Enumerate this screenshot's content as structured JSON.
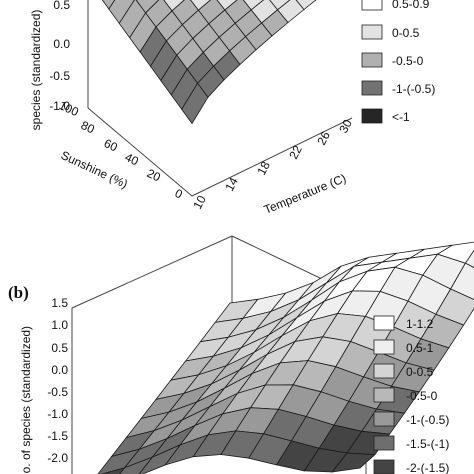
{
  "chart_data": [
    {
      "panel": "",
      "type": "surface3d",
      "ylabel": "species (standardized)",
      "xlabel_sunshine": "Sunshine (%)",
      "xlabel_temperature": "Temperature (C)",
      "z_ticks": [
        "0.5",
        "0.0",
        "-0.5",
        "-1.0"
      ],
      "sunshine_ticks": [
        "100",
        "80",
        "60",
        "40",
        "20",
        "0"
      ],
      "temperature_ticks": [
        "10",
        "14",
        "18",
        "22",
        "26",
        "30"
      ],
      "zlim": [
        -1.3,
        1.0
      ],
      "legend": [
        {
          "label": "0.5-0.9",
          "color": "#ffffff"
        },
        {
          "label": "0-0.5",
          "color": "#e2e2e2"
        },
        {
          "label": "-0.5-0",
          "color": "#b0b0b0"
        },
        {
          "label": "-1-(-0.5)",
          "color": "#727272"
        },
        {
          "label": "<-1",
          "color": "#262626"
        }
      ]
    },
    {
      "panel": "(b)",
      "type": "surface3d",
      "ylabel": "No. of species (standardized)",
      "z_ticks": [
        "1.5",
        "1.0",
        "0.5",
        "0.0",
        "-0.5",
        "-1.0",
        "-1.5",
        "-2.0"
      ],
      "zlim": [
        -2.0,
        1.6
      ],
      "legend": [
        {
          "label": "1-1.2",
          "color": "#ffffff"
        },
        {
          "label": "0.5-1",
          "color": "#efefef"
        },
        {
          "label": "0-0.5",
          "color": "#d4d4d4"
        },
        {
          "label": "-0.5-0",
          "color": "#b8b8b8"
        },
        {
          "label": "-1-(-0.5)",
          "color": "#999999"
        },
        {
          "label": "-1.5-(-1)",
          "color": "#6e6e6e"
        },
        {
          "label": "-2-(-1.5)",
          "color": "#444444"
        }
      ]
    }
  ]
}
